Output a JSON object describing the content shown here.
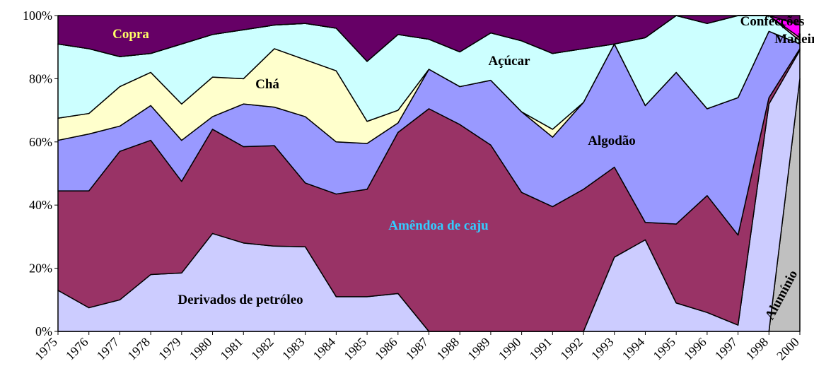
{
  "chart_data": {
    "type": "stacked_area",
    "categories": [
      "1975",
      "1976",
      "1977",
      "1978",
      "1979",
      "1980",
      "1981",
      "1982",
      "1983",
      "1984",
      "1985",
      "1986",
      "1987",
      "1988",
      "1989",
      "1990",
      "1991",
      "1992",
      "1993",
      "1994",
      "1995",
      "1996",
      "1997",
      "1998",
      "2000"
    ],
    "ylim": [
      0,
      100
    ],
    "yticks": [
      {
        "value": 0,
        "label": "0%"
      },
      {
        "value": 20,
        "label": "20%"
      },
      {
        "value": 40,
        "label": "40%"
      },
      {
        "value": 60,
        "label": "60%"
      },
      {
        "value": 80,
        "label": "80%"
      },
      {
        "value": 100,
        "label": "100%"
      }
    ],
    "series": [
      {
        "name": "Alumínio",
        "color": "#c0c0c0",
        "label_color": "#000000",
        "values": [
          0,
          0,
          0,
          0,
          0,
          0,
          0,
          0,
          0,
          0,
          0,
          0,
          0,
          0,
          0,
          0,
          0,
          0,
          0,
          0,
          0,
          0,
          0,
          0,
          80
        ]
      },
      {
        "name": "Derivados de petróleo",
        "color": "#ccccff",
        "label_color": "#000000",
        "values": [
          13,
          7.5,
          10,
          18,
          18.5,
          31,
          28,
          27,
          26.8,
          11,
          11,
          12,
          0,
          0,
          0,
          0,
          0,
          0,
          23.5,
          29,
          9,
          6,
          2,
          72,
          9
        ]
      },
      {
        "name": "Amêndoa de caju",
        "color": "#993366",
        "label_color": "#33ccff",
        "values": [
          31.5,
          37,
          47,
          42.5,
          29,
          33,
          30.5,
          31.8,
          20.2,
          32.5,
          34,
          51,
          70.5,
          65.5,
          59,
          44,
          39.5,
          45,
          28.5,
          5.5,
          25,
          37,
          28.5,
          2,
          0.5
        ]
      },
      {
        "name": "Algodão",
        "color": "#9999ff",
        "label_color": "#000000",
        "values": [
          16,
          18,
          8,
          11,
          13,
          4,
          13.5,
          12.2,
          21,
          16.5,
          14.5,
          3,
          12.5,
          12,
          20.5,
          25.5,
          22,
          27.5,
          39,
          37,
          48,
          27.5,
          43.5,
          21,
          1.5
        ]
      },
      {
        "name": "Chá",
        "color": "#ffffcc",
        "label_color": "#000000",
        "values": [
          7,
          6.5,
          12.5,
          10.5,
          11.5,
          12.5,
          8,
          18.5,
          18,
          22.5,
          7,
          4,
          0,
          0,
          0,
          0,
          2.5,
          0,
          0,
          0,
          0,
          0,
          0,
          0,
          0
        ]
      },
      {
        "name": "Açúcar",
        "color": "#ccffff",
        "label_color": "#000000",
        "values": [
          23.5,
          20.5,
          9.5,
          6,
          19,
          13.5,
          15.5,
          7.5,
          11.5,
          13.5,
          19,
          24,
          9.5,
          11,
          15,
          22.5,
          24,
          17,
          0,
          21.5,
          18,
          27,
          26,
          5,
          1
        ]
      },
      {
        "name": "Madeira",
        "color": "#ff99cc",
        "label_color": "#000000",
        "values": [
          0,
          0,
          0,
          0,
          0,
          0,
          0,
          0,
          0,
          0,
          0,
          0,
          0,
          0,
          0,
          0,
          0,
          0,
          0,
          0,
          0,
          0,
          0,
          0,
          1
        ]
      },
      {
        "name": "Confecções",
        "color": "#ff00ff",
        "label_color": "#000000",
        "values": [
          0,
          0,
          0,
          0,
          0,
          0,
          0,
          0,
          0,
          0,
          0,
          0,
          0,
          0,
          0,
          0,
          0,
          0,
          0,
          0,
          0,
          0,
          0,
          0,
          4
        ]
      },
      {
        "name": "Copra",
        "color": "#660066",
        "label_color": "#ffff66",
        "values": [
          9,
          10.5,
          13,
          12,
          9,
          6,
          4.5,
          3,
          2.5,
          4,
          14.5,
          6,
          7.5,
          11.5,
          5.5,
          8,
          12,
          10.5,
          9,
          7,
          0,
          2.5,
          0,
          0,
          3
        ]
      }
    ]
  }
}
